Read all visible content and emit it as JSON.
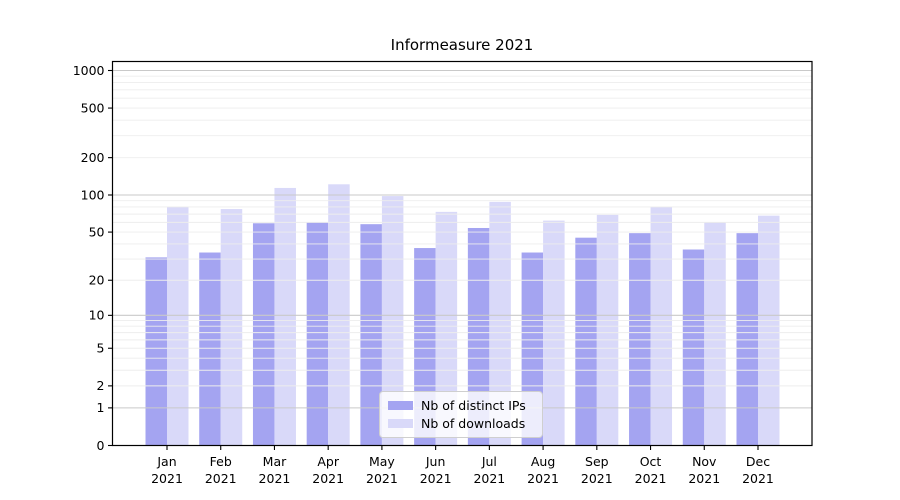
{
  "title": "Informeasure 2021",
  "legend": {
    "position": "lower center",
    "items": [
      {
        "label": "Nb of distinct IPs",
        "color": "#a4a4f1"
      },
      {
        "label": "Nb of downloads",
        "color": "#d9d9f9"
      }
    ]
  },
  "chart_data": {
    "type": "bar",
    "title": "Informeasure 2021",
    "categories": [
      "Jan",
      "Feb",
      "Mar",
      "Apr",
      "May",
      "Jun",
      "Jul",
      "Aug",
      "Sep",
      "Oct",
      "Nov",
      "Dec"
    ],
    "category_year": "2021",
    "series": [
      {
        "name": "Nb of distinct IPs",
        "color": "#a4a4f1",
        "values": [
          31,
          34,
          59,
          60,
          58,
          37,
          54,
          34,
          45,
          49,
          36,
          49
        ]
      },
      {
        "name": "Nb of downloads",
        "color": "#d9d9f9",
        "values": [
          80,
          77,
          114,
          122,
          98,
          73,
          88,
          62,
          69,
          80,
          60,
          68
        ]
      }
    ],
    "xlabel": "",
    "ylabel": "",
    "yscale": "log1p",
    "y_ticks": [
      1000,
      500,
      200,
      100,
      50,
      20,
      10,
      5,
      2,
      1,
      0
    ],
    "y_major_gridlines": [
      1,
      10,
      100,
      1000
    ],
    "ylim": [
      0,
      1160
    ],
    "grid": "on",
    "grid_over_bars": true,
    "legend_position": "lower center",
    "colors": {
      "major_grid": "#c9c9c9",
      "minor_grid": "#ededed",
      "spine": "#000000"
    }
  }
}
